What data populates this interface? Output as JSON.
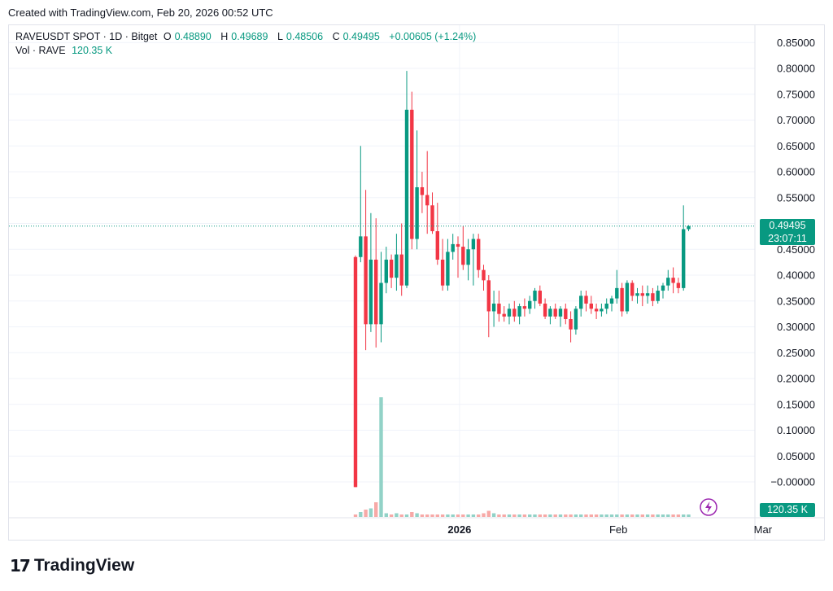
{
  "caption": "Created with TradingView.com, Feb 20, 2026 00:52 UTC",
  "legend": {
    "symbol": "RAVEUSDT SPOT · 1D · Bitget",
    "open_label": "O",
    "open": "0.48890",
    "high_label": "H",
    "high": "0.49689",
    "low_label": "L",
    "low": "0.48506",
    "close_label": "C",
    "close": "0.49495",
    "change": "+0.00605 (+1.24%)",
    "vol_label": "Vol · RAVE",
    "vol": "120.35 K"
  },
  "price_tag": {
    "price": "0.49495",
    "countdown": "23:07:11"
  },
  "volume_tag": "120.35 K",
  "logo_text": "TradingView",
  "colors": {
    "up": "#089981",
    "down": "#f23645",
    "up_vol": "#92d2c7",
    "down_vol": "#f7a9a7",
    "grid": "#f0f3fa"
  },
  "chart_data": {
    "type": "candlestick",
    "y_axis": {
      "ylim": [
        -0.05,
        0.87
      ],
      "ticks": [
        "0.85000",
        "0.80000",
        "0.75000",
        "0.70000",
        "0.65000",
        "0.60000",
        "0.55000",
        "0.50000",
        "0.45000",
        "0.40000",
        "0.35000",
        "0.30000",
        "0.25000",
        "0.20000",
        "0.15000",
        "0.10000",
        "0.05000",
        "−0.00000"
      ],
      "tick_values": [
        0.85,
        0.8,
        0.75,
        0.7,
        0.65,
        0.6,
        0.55,
        0.5,
        0.45,
        0.4,
        0.35,
        0.3,
        0.25,
        0.2,
        0.15,
        0.1,
        0.05,
        0.0
      ]
    },
    "x_labels": [
      {
        "label": "2026",
        "bar": 20.3,
        "bold": true
      },
      {
        "label": "Feb",
        "bar": 51.3,
        "bold": false
      },
      {
        "label": "Mar",
        "bar": 79.5,
        "bold": false
      }
    ],
    "last_price": 0.49495,
    "candles": [
      [
        0.435,
        0.438,
        -0.01,
        -0.01
      ],
      [
        0.435,
        0.65,
        0.425,
        0.475
      ],
      [
        0.475,
        0.565,
        0.255,
        0.305
      ],
      [
        0.305,
        0.52,
        0.29,
        0.43
      ],
      [
        0.43,
        0.51,
        0.26,
        0.305
      ],
      [
        0.305,
        0.445,
        0.27,
        0.385
      ],
      [
        0.385,
        0.455,
        0.365,
        0.43
      ],
      [
        0.43,
        0.44,
        0.375,
        0.395
      ],
      [
        0.395,
        0.48,
        0.37,
        0.44
      ],
      [
        0.44,
        0.5,
        0.36,
        0.38
      ],
      [
        0.38,
        0.795,
        0.375,
        0.72
      ],
      [
        0.72,
        0.755,
        0.45,
        0.47
      ],
      [
        0.47,
        0.68,
        0.45,
        0.57
      ],
      [
        0.57,
        0.6,
        0.52,
        0.555
      ],
      [
        0.555,
        0.64,
        0.48,
        0.535
      ],
      [
        0.535,
        0.56,
        0.48,
        0.485
      ],
      [
        0.485,
        0.54,
        0.42,
        0.43
      ],
      [
        0.43,
        0.47,
        0.37,
        0.38
      ],
      [
        0.38,
        0.47,
        0.37,
        0.445
      ],
      [
        0.445,
        0.48,
        0.43,
        0.46
      ],
      [
        0.46,
        0.475,
        0.395,
        0.455
      ],
      [
        0.455,
        0.495,
        0.41,
        0.42
      ],
      [
        0.42,
        0.47,
        0.39,
        0.45
      ],
      [
        0.45,
        0.48,
        0.38,
        0.47
      ],
      [
        0.47,
        0.48,
        0.395,
        0.41
      ],
      [
        0.41,
        0.42,
        0.37,
        0.39
      ],
      [
        0.39,
        0.4,
        0.28,
        0.33
      ],
      [
        0.33,
        0.37,
        0.3,
        0.345
      ],
      [
        0.345,
        0.37,
        0.31,
        0.325
      ],
      [
        0.325,
        0.34,
        0.31,
        0.32
      ],
      [
        0.32,
        0.345,
        0.305,
        0.335
      ],
      [
        0.335,
        0.35,
        0.31,
        0.32
      ],
      [
        0.32,
        0.345,
        0.305,
        0.34
      ],
      [
        0.34,
        0.355,
        0.32,
        0.335
      ],
      [
        0.335,
        0.36,
        0.325,
        0.35
      ],
      [
        0.35,
        0.375,
        0.335,
        0.37
      ],
      [
        0.37,
        0.38,
        0.34,
        0.345
      ],
      [
        0.345,
        0.355,
        0.315,
        0.32
      ],
      [
        0.32,
        0.34,
        0.305,
        0.335
      ],
      [
        0.335,
        0.345,
        0.315,
        0.32
      ],
      [
        0.32,
        0.34,
        0.3,
        0.335
      ],
      [
        0.335,
        0.345,
        0.305,
        0.315
      ],
      [
        0.315,
        0.33,
        0.27,
        0.295
      ],
      [
        0.295,
        0.34,
        0.285,
        0.335
      ],
      [
        0.335,
        0.37,
        0.32,
        0.36
      ],
      [
        0.36,
        0.37,
        0.33,
        0.345
      ],
      [
        0.345,
        0.36,
        0.325,
        0.335
      ],
      [
        0.335,
        0.345,
        0.315,
        0.33
      ],
      [
        0.33,
        0.345,
        0.32,
        0.335
      ],
      [
        0.335,
        0.355,
        0.325,
        0.345
      ],
      [
        0.345,
        0.36,
        0.33,
        0.355
      ],
      [
        0.355,
        0.41,
        0.345,
        0.375
      ],
      [
        0.375,
        0.385,
        0.32,
        0.33
      ],
      [
        0.33,
        0.39,
        0.325,
        0.385
      ],
      [
        0.385,
        0.39,
        0.35,
        0.36
      ],
      [
        0.36,
        0.375,
        0.345,
        0.365
      ],
      [
        0.365,
        0.38,
        0.34,
        0.36
      ],
      [
        0.36,
        0.38,
        0.345,
        0.365
      ],
      [
        0.365,
        0.375,
        0.34,
        0.35
      ],
      [
        0.35,
        0.38,
        0.345,
        0.37
      ],
      [
        0.37,
        0.385,
        0.355,
        0.38
      ],
      [
        0.38,
        0.41,
        0.37,
        0.395
      ],
      [
        0.395,
        0.415,
        0.365,
        0.385
      ],
      [
        0.385,
        0.395,
        0.365,
        0.375
      ],
      [
        0.375,
        0.535,
        0.37,
        0.489
      ],
      [
        0.4889,
        0.49689,
        0.48506,
        0.49495
      ]
    ],
    "volume_rel": [
      0.02,
      0.04,
      0.06,
      0.07,
      0.12,
      0.98,
      0.03,
      0.02,
      0.03,
      0.02,
      0.02,
      0.04,
      0.03,
      0.02,
      0.02,
      0.02,
      0.02,
      0.02,
      0.02,
      0.02,
      0.02,
      0.02,
      0.02,
      0.02,
      0.02,
      0.03,
      0.05,
      0.03,
      0.02,
      0.02,
      0.02,
      0.02,
      0.02,
      0.02,
      0.02,
      0.02,
      0.02,
      0.02,
      0.02,
      0.02,
      0.02,
      0.02,
      0.02,
      0.02,
      0.02,
      0.02,
      0.02,
      0.02,
      0.02,
      0.02,
      0.02,
      0.02,
      0.02,
      0.02,
      0.02,
      0.02,
      0.02,
      0.02,
      0.02,
      0.02,
      0.02,
      0.02,
      0.02,
      0.02,
      0.02,
      0.02
    ]
  }
}
